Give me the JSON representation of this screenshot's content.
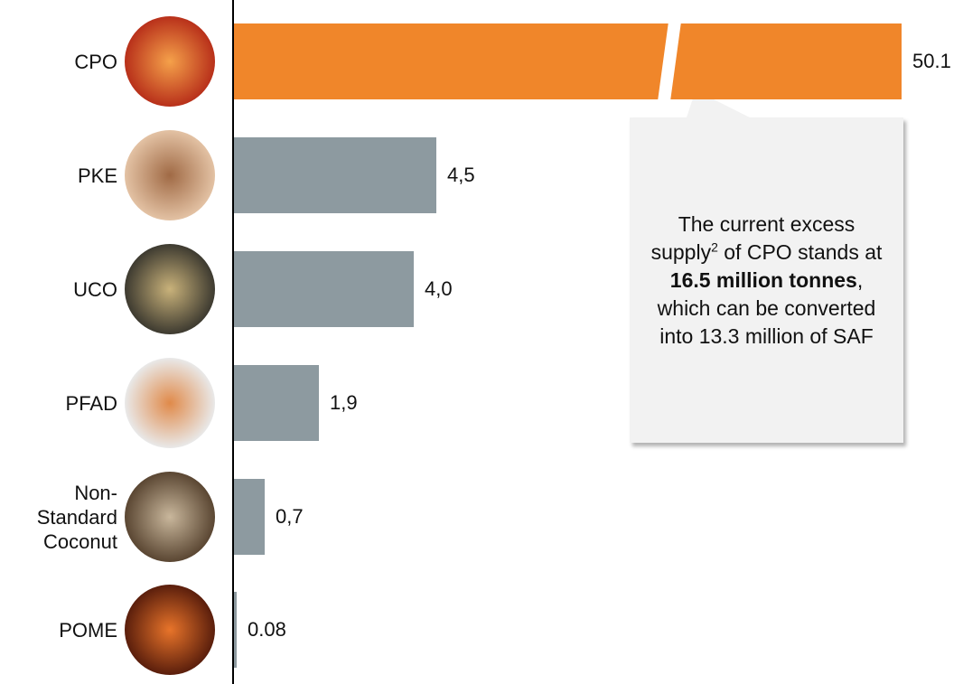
{
  "chart_data": {
    "type": "bar",
    "orientation": "horizontal",
    "categories": [
      "CPO",
      "PKE",
      "UCO",
      "PFAD",
      "Non-Standard Coconut",
      "POME"
    ],
    "values": [
      50.1,
      4.5,
      4.0,
      1.9,
      0.7,
      0.08
    ],
    "value_labels": [
      "50.1",
      "4,5",
      "4,0",
      "1,9",
      "0,7",
      "0.08"
    ],
    "colors": [
      "#f0862a",
      "#8d9aa0",
      "#8d9aa0",
      "#8d9aa0",
      "#8d9aa0",
      "#8d9aa0"
    ],
    "callout": {
      "parts": [
        "The current excess supply",
        "2",
        " of CPO stands at ",
        "16.5 million tonnes",
        ", which can be converted into 13.3 million of SAF"
      ]
    }
  }
}
